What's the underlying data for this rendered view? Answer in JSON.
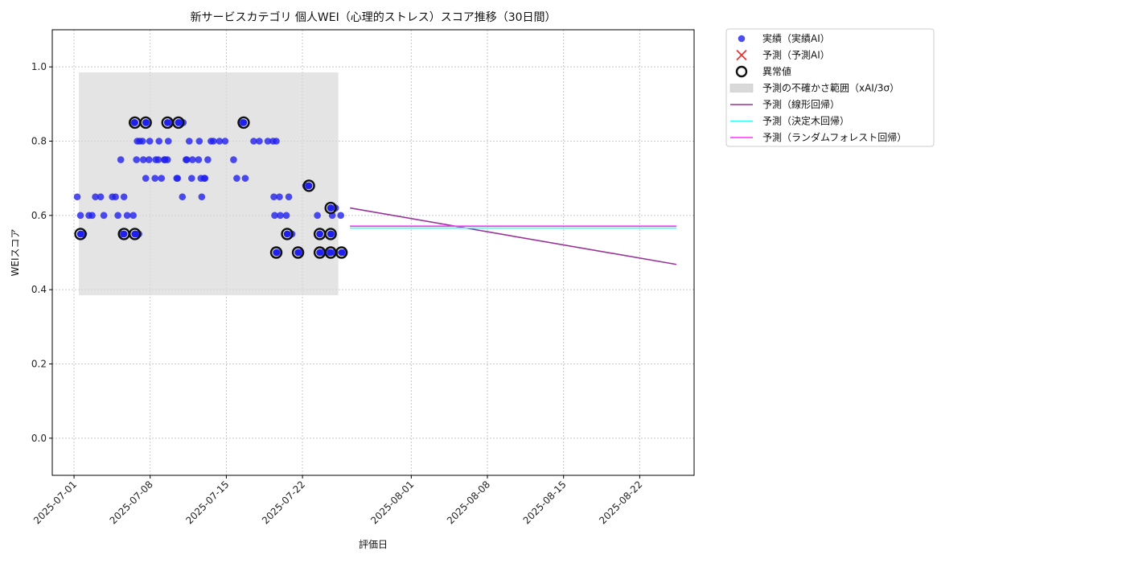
{
  "chart_data": {
    "type": "scatter",
    "title": "新サービスカテゴリ 個人WEI（心理的ストレス）スコア推移（30日間）",
    "xlabel": "評価日",
    "ylabel": "WEIスコア",
    "xlim": [
      "2025-06-29",
      "2025-08-27"
    ],
    "ylim": [
      -0.1,
      1.1
    ],
    "grid": true,
    "legend_position": "outside-top-right",
    "yticks": [
      "0.0",
      "0.2",
      "0.4",
      "0.6",
      "0.8",
      "1.0"
    ],
    "xticks": [
      "2025-07-01",
      "2025-07-08",
      "2025-07-15",
      "2025-07-22",
      "2025-08-01",
      "2025-08-08",
      "2025-08-15",
      "2025-08-22"
    ],
    "uncertainty_band": {
      "x": [
        "2025-07-01",
        "2025-07-25"
      ],
      "y": [
        0.385,
        0.985
      ]
    },
    "series": [
      {
        "name": "実績（実績AI）",
        "kind": "scatter",
        "color": "#2020ee",
        "points": [
          [
            "2025-07-01",
            0.65
          ],
          [
            "2025-07-01",
            0.6
          ],
          [
            "2025-07-01",
            0.55
          ],
          [
            "2025-07-02",
            0.6
          ],
          [
            "2025-07-02",
            0.6
          ],
          [
            "2025-07-02",
            0.65
          ],
          [
            "2025-07-03",
            0.65
          ],
          [
            "2025-07-03",
            0.6
          ],
          [
            "2025-07-04",
            0.6
          ],
          [
            "2025-07-04",
            0.65
          ],
          [
            "2025-07-04",
            0.65
          ],
          [
            "2025-07-05",
            0.75
          ],
          [
            "2025-07-05",
            0.65
          ],
          [
            "2025-07-05",
            0.6
          ],
          [
            "2025-07-05",
            0.55
          ],
          [
            "2025-07-06",
            0.55
          ],
          [
            "2025-07-06",
            0.55
          ],
          [
            "2025-07-06",
            0.6
          ],
          [
            "2025-07-06",
            0.75
          ],
          [
            "2025-07-06",
            0.8
          ],
          [
            "2025-07-06",
            0.85
          ],
          [
            "2025-07-06",
            0.8
          ],
          [
            "2025-07-07",
            0.8
          ],
          [
            "2025-07-07",
            0.7
          ],
          [
            "2025-07-07",
            0.75
          ],
          [
            "2025-07-07",
            0.75
          ],
          [
            "2025-07-07",
            0.85
          ],
          [
            "2025-07-07",
            0.8
          ],
          [
            "2025-07-08",
            0.7
          ],
          [
            "2025-07-08",
            0.75
          ],
          [
            "2025-07-08",
            0.7
          ],
          [
            "2025-07-08",
            0.75
          ],
          [
            "2025-07-08",
            0.8
          ],
          [
            "2025-07-09",
            0.75
          ],
          [
            "2025-07-09",
            0.75
          ],
          [
            "2025-07-09",
            0.85
          ],
          [
            "2025-07-09",
            0.75
          ],
          [
            "2025-07-09",
            0.8
          ],
          [
            "2025-07-10",
            0.65
          ],
          [
            "2025-07-10",
            0.7
          ],
          [
            "2025-07-10",
            0.85
          ],
          [
            "2025-07-10",
            0.85
          ],
          [
            "2025-07-10",
            0.7
          ],
          [
            "2025-07-11",
            0.7
          ],
          [
            "2025-07-11",
            0.75
          ],
          [
            "2025-07-11",
            0.8
          ],
          [
            "2025-07-11",
            0.75
          ],
          [
            "2025-07-11",
            0.75
          ],
          [
            "2025-07-12",
            0.7
          ],
          [
            "2025-07-12",
            0.7
          ],
          [
            "2025-07-12",
            0.75
          ],
          [
            "2025-07-12",
            0.65
          ],
          [
            "2025-07-12",
            0.7
          ],
          [
            "2025-07-12",
            0.8
          ],
          [
            "2025-07-13",
            0.8
          ],
          [
            "2025-07-13",
            0.75
          ],
          [
            "2025-07-13",
            0.8
          ],
          [
            "2025-07-14",
            0.8
          ],
          [
            "2025-07-14",
            0.8
          ],
          [
            "2025-07-15",
            0.75
          ],
          [
            "2025-07-15",
            0.7
          ],
          [
            "2025-07-16",
            0.85
          ],
          [
            "2025-07-16",
            0.7
          ],
          [
            "2025-07-17",
            0.8
          ],
          [
            "2025-07-17",
            0.8
          ],
          [
            "2025-07-18",
            0.8
          ],
          [
            "2025-07-19",
            0.8
          ],
          [
            "2025-07-19",
            0.8
          ],
          [
            "2025-07-19",
            0.65
          ],
          [
            "2025-07-19",
            0.65
          ],
          [
            "2025-07-19",
            0.5
          ],
          [
            "2025-07-19",
            0.6
          ],
          [
            "2025-07-19",
            0.6
          ],
          [
            "2025-07-20",
            0.65
          ],
          [
            "2025-07-20",
            0.55
          ],
          [
            "2025-07-20",
            0.6
          ],
          [
            "2025-07-21",
            0.5
          ],
          [
            "2025-07-22",
            0.68
          ],
          [
            "2025-07-23",
            0.55
          ],
          [
            "2025-07-23",
            0.5
          ],
          [
            "2025-07-23",
            0.6
          ],
          [
            "2025-07-24",
            0.55
          ],
          [
            "2025-07-24",
            0.5
          ],
          [
            "2025-07-24",
            0.5
          ],
          [
            "2025-07-24",
            0.6
          ],
          [
            "2025-07-24",
            0.62
          ],
          [
            "2025-07-25",
            0.6
          ],
          [
            "2025-07-25",
            0.5
          ]
        ]
      },
      {
        "name": "予測（予測AI）",
        "kind": "marker-x",
        "color": "#ee3333",
        "points": []
      },
      {
        "name": "異常値",
        "kind": "ring",
        "color": "#111111",
        "points": [
          [
            "2025-07-01",
            0.55
          ],
          [
            "2025-07-05",
            0.55
          ],
          [
            "2025-07-06",
            0.55
          ],
          [
            "2025-07-06",
            0.85
          ],
          [
            "2025-07-07",
            0.85
          ],
          [
            "2025-07-09",
            0.85
          ],
          [
            "2025-07-10",
            0.85
          ],
          [
            "2025-07-16",
            0.85
          ],
          [
            "2025-07-19",
            0.5
          ],
          [
            "2025-07-20",
            0.55
          ],
          [
            "2025-07-21",
            0.5
          ],
          [
            "2025-07-22",
            0.68
          ],
          [
            "2025-07-23",
            0.55
          ],
          [
            "2025-07-23",
            0.5
          ],
          [
            "2025-07-24",
            0.55
          ],
          [
            "2025-07-24",
            0.5
          ],
          [
            "2025-07-24",
            0.62
          ],
          [
            "2025-07-25",
            0.5
          ]
        ]
      },
      {
        "name": "予測の不確かさ範囲（xAI/3σ）",
        "kind": "band",
        "color": "#d9d9d9"
      },
      {
        "name": "予測（線形回帰）",
        "kind": "line",
        "color": "#993399",
        "points": [
          [
            "2025-07-26",
            0.62
          ],
          [
            "2025-08-25",
            0.468
          ]
        ]
      },
      {
        "name": "予測（決定木回帰）",
        "kind": "line",
        "color": "#33ffff",
        "points": [
          [
            "2025-07-26",
            0.566
          ],
          [
            "2025-08-25",
            0.566
          ]
        ]
      },
      {
        "name": "予測（ランダムフォレスト回帰）",
        "kind": "line",
        "color": "#ff33ff",
        "points": [
          [
            "2025-07-26",
            0.571
          ],
          [
            "2025-08-25",
            0.571
          ]
        ]
      }
    ]
  }
}
